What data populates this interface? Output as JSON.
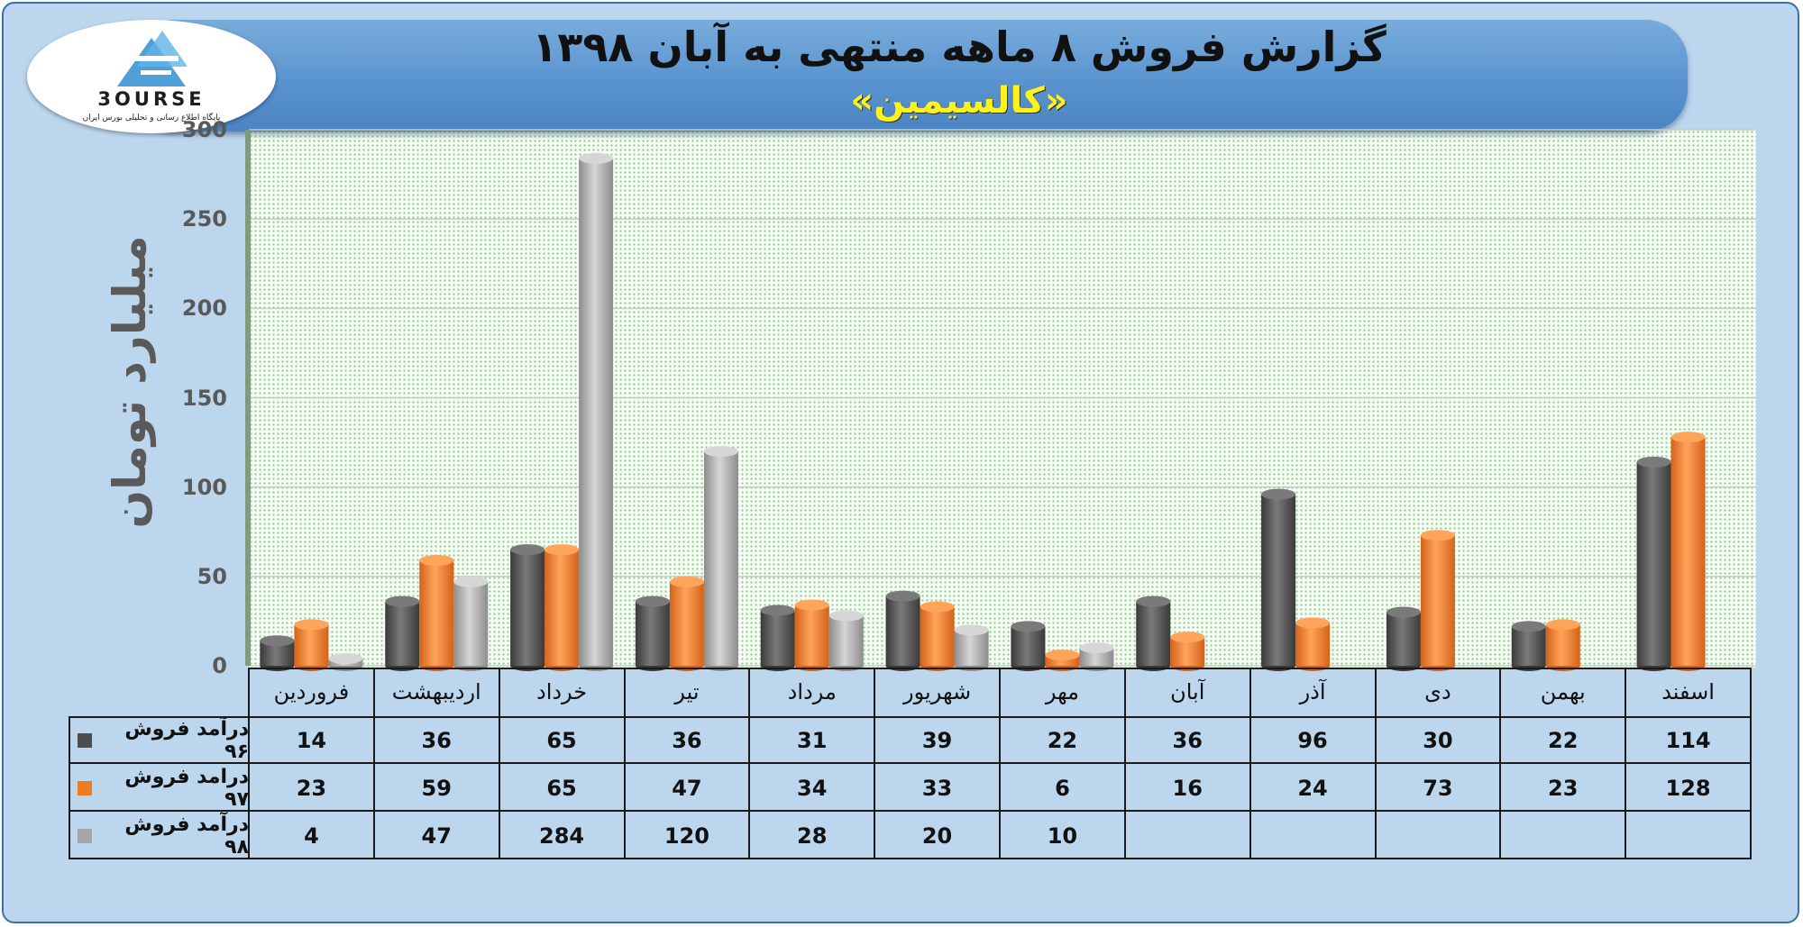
{
  "header": {
    "title": "گزارش فروش ۸ ماهه منتهی به آبان ۱۳۹۸",
    "subtitle": "«کالسیمین»"
  },
  "logo": {
    "text": "3OURSE",
    "tagline": "پایگاه اطلاع رسانی و تحلیلی بورس ایران"
  },
  "colors": {
    "series_96": "#4d4d4d",
    "series_97": "#f07c22",
    "series_98": "#a6a6a6"
  },
  "chart_data": {
    "type": "bar",
    "title": "گزارش فروش ۸ ماهه منتهی به آبان ۱۳۹۸",
    "subtitle": "«کالسیمین»",
    "ylabel": "میلیارد تومان",
    "xlabel": "",
    "ylim": [
      0,
      300
    ],
    "yticks": [
      0,
      50,
      100,
      150,
      200,
      250,
      300
    ],
    "grid": true,
    "categories": [
      "فروردین",
      "اردیبهشت",
      "خرداد",
      "تیر",
      "مرداد",
      "شهریور",
      "مهر",
      "آبان",
      "آذر",
      "دی",
      "بهمن",
      "اسفند"
    ],
    "series": [
      {
        "name": "درآمد فروش ۹۶",
        "color": "#4d4d4d",
        "values": [
          14,
          36,
          65,
          36,
          31,
          39,
          22,
          36,
          96,
          30,
          22,
          114
        ]
      },
      {
        "name": "درامد فروش ۹۷",
        "color": "#f07c22",
        "values": [
          23,
          59,
          65,
          47,
          34,
          33,
          6,
          16,
          24,
          73,
          23,
          128
        ]
      },
      {
        "name": "درآمد فروش ۹۸",
        "color": "#a6a6a6",
        "values": [
          4,
          47,
          284,
          120,
          28,
          20,
          10,
          null,
          null,
          null,
          null,
          null
        ]
      }
    ],
    "legend": "table-left"
  }
}
